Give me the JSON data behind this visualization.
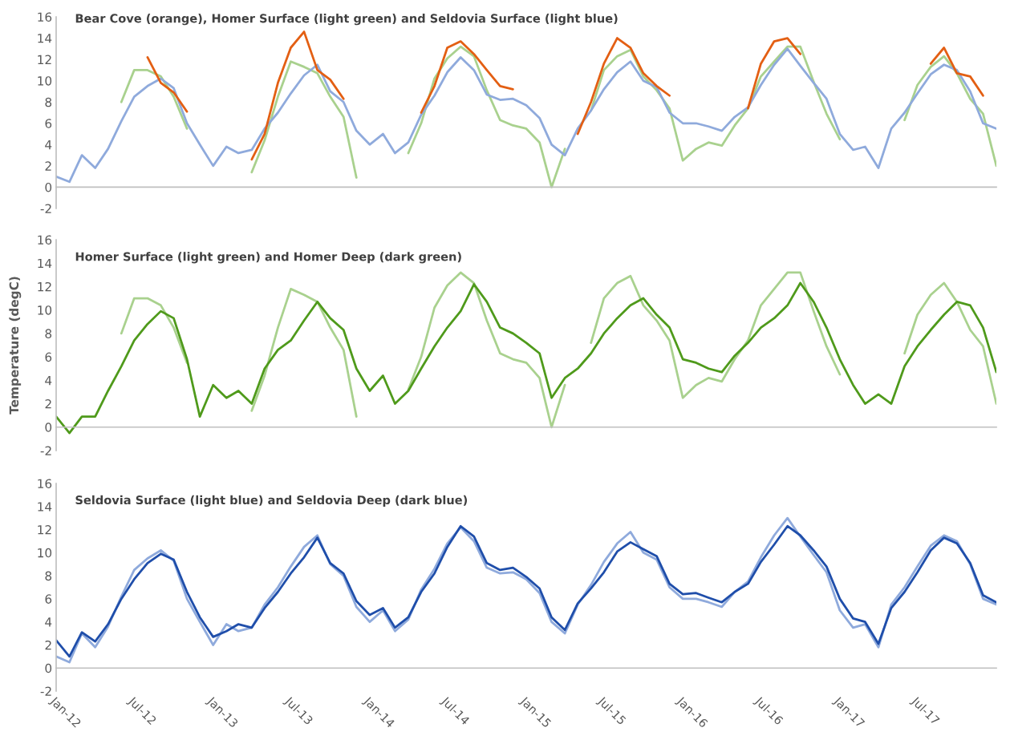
{
  "chart_data": [
    {
      "type": "line",
      "title": "Bear Cove (orange), Homer Surface (light green) and Seldovia Surface (light blue)",
      "x": [
        "2012-01",
        "2012-02",
        "2012-03",
        "2012-04",
        "2012-05",
        "2012-06",
        "2012-07",
        "2012-08",
        "2012-09",
        "2012-10",
        "2012-11",
        "2012-12",
        "2013-01",
        "2013-02",
        "2013-03",
        "2013-04",
        "2013-05",
        "2013-06",
        "2013-07",
        "2013-08",
        "2013-09",
        "2013-10",
        "2013-11",
        "2013-12",
        "2014-01",
        "2014-02",
        "2014-03",
        "2014-04",
        "2014-05",
        "2014-06",
        "2014-07",
        "2014-08",
        "2014-09",
        "2014-10",
        "2014-11",
        "2014-12",
        "2015-01",
        "2015-02",
        "2015-03",
        "2015-04",
        "2015-05",
        "2015-06",
        "2015-07",
        "2015-08",
        "2015-09",
        "2015-10",
        "2015-11",
        "2015-12",
        "2016-01",
        "2016-02",
        "2016-03",
        "2016-04",
        "2016-05",
        "2016-06",
        "2016-07",
        "2016-08",
        "2016-09",
        "2016-10",
        "2016-11",
        "2016-12",
        "2017-01",
        "2017-02",
        "2017-03",
        "2017-04",
        "2017-05",
        "2017-06",
        "2017-07",
        "2017-08",
        "2017-09",
        "2017-10",
        "2017-11",
        "2017-12",
        "2018-01"
      ],
      "series": [
        {
          "color": "#a9d18e",
          "values": [
            null,
            null,
            null,
            null,
            null,
            8.0,
            11.0,
            11.0,
            10.4,
            8.5,
            5.5,
            null,
            null,
            null,
            null,
            1.4,
            4.4,
            8.5,
            11.8,
            11.3,
            10.7,
            8.5,
            6.6,
            0.9,
            null,
            null,
            null,
            3.2,
            6.0,
            10.2,
            12.1,
            13.2,
            12.3,
            9.1,
            6.3,
            5.8,
            5.5,
            4.2,
            0.0,
            3.6,
            null,
            7.2,
            11.0,
            12.3,
            12.9,
            10.4,
            9.1,
            7.4,
            2.5,
            3.6,
            4.2,
            3.9,
            5.8,
            7.4,
            10.4,
            11.8,
            13.2,
            13.2,
            9.9,
            6.9,
            4.5,
            null,
            null,
            null,
            null,
            6.3,
            9.6,
            11.3,
            12.3,
            10.7,
            8.3,
            6.9,
            2.0
          ]
        },
        {
          "color": "#8faadc",
          "values": [
            1.0,
            0.5,
            3.0,
            1.8,
            3.6,
            6.2,
            8.5,
            9.5,
            10.2,
            9.3,
            6.0,
            4.0,
            2.0,
            3.8,
            3.2,
            3.5,
            5.5,
            7.0,
            8.8,
            10.5,
            11.5,
            9.0,
            8.0,
            5.3,
            4.0,
            5.0,
            3.2,
            4.2,
            6.8,
            8.6,
            10.8,
            12.2,
            11.0,
            8.7,
            8.2,
            8.3,
            7.7,
            6.5,
            4.0,
            3.0,
            5.5,
            7.2,
            9.2,
            10.8,
            11.8,
            10.0,
            9.4,
            7.0,
            6.0,
            6.0,
            5.7,
            5.3,
            6.6,
            7.5,
            9.6,
            11.5,
            13.0,
            11.4,
            9.8,
            8.3,
            5.0,
            3.5,
            3.8,
            1.8,
            5.5,
            7.0,
            8.8,
            10.6,
            11.5,
            11.0,
            9.0,
            6.0,
            5.5
          ]
        },
        {
          "color": "#e35f13",
          "values": [
            null,
            null,
            null,
            null,
            null,
            null,
            null,
            12.2,
            9.8,
            8.9,
            7.1,
            null,
            null,
            null,
            null,
            2.6,
            5.0,
            9.8,
            13.1,
            14.6,
            11.0,
            10.1,
            8.3,
            null,
            null,
            null,
            null,
            null,
            7.0,
            9.5,
            13.1,
            13.7,
            12.5,
            11.0,
            9.5,
            9.2,
            null,
            null,
            null,
            null,
            5.0,
            8.0,
            11.6,
            14.0,
            13.1,
            10.7,
            9.5,
            8.6,
            null,
            null,
            null,
            null,
            null,
            7.4,
            11.6,
            13.7,
            14.0,
            12.5,
            null,
            null,
            null,
            null,
            null,
            null,
            null,
            null,
            null,
            11.6,
            13.1,
            10.7,
            10.4,
            8.6,
            null
          ]
        }
      ],
      "xlim": [
        "2012-01",
        "2018-01"
      ],
      "xticks": [
        {
          "value": "2012-07",
          "label": null
        },
        {
          "value": "2013-01",
          "label": null
        },
        {
          "value": "2013-07",
          "label": null
        },
        {
          "value": "2014-01",
          "label": null
        },
        {
          "value": "2014-07",
          "label": null
        },
        {
          "value": "2015-01",
          "label": null
        },
        {
          "value": "2015-07",
          "label": null
        },
        {
          "value": "2016-01",
          "label": null
        },
        {
          "value": "2016-07",
          "label": null
        },
        {
          "value": "2017-01",
          "label": null
        },
        {
          "value": "2017-07",
          "label": null
        }
      ],
      "ylim": [
        -2,
        16
      ],
      "yticks": [
        -2,
        0,
        2,
        4,
        6,
        8,
        10,
        12,
        14,
        16
      ],
      "tick_labels": "y"
    },
    {
      "type": "line",
      "title": "Homer Surface (light green) and Homer Deep (dark green)",
      "ylabel": "Temperature (degC)",
      "x": [
        "2012-01",
        "2012-02",
        "2012-03",
        "2012-04",
        "2012-05",
        "2012-06",
        "2012-07",
        "2012-08",
        "2012-09",
        "2012-10",
        "2012-11",
        "2012-12",
        "2013-01",
        "2013-02",
        "2013-03",
        "2013-04",
        "2013-05",
        "2013-06",
        "2013-07",
        "2013-08",
        "2013-09",
        "2013-10",
        "2013-11",
        "2013-12",
        "2014-01",
        "2014-02",
        "2014-03",
        "2014-04",
        "2014-05",
        "2014-06",
        "2014-07",
        "2014-08",
        "2014-09",
        "2014-10",
        "2014-11",
        "2014-12",
        "2015-01",
        "2015-02",
        "2015-03",
        "2015-04",
        "2015-05",
        "2015-06",
        "2015-07",
        "2015-08",
        "2015-09",
        "2015-10",
        "2015-11",
        "2015-12",
        "2016-01",
        "2016-02",
        "2016-03",
        "2016-04",
        "2016-05",
        "2016-06",
        "2016-07",
        "2016-08",
        "2016-09",
        "2016-10",
        "2016-11",
        "2016-12",
        "2017-01",
        "2017-02",
        "2017-03",
        "2017-04",
        "2017-05",
        "2017-06",
        "2017-07",
        "2017-08",
        "2017-09",
        "2017-10",
        "2017-11",
        "2017-12",
        "2018-01"
      ],
      "series": [
        {
          "color": "#a9d18e",
          "values": [
            null,
            null,
            null,
            null,
            null,
            8.0,
            11.0,
            11.0,
            10.4,
            8.5,
            5.5,
            null,
            null,
            null,
            null,
            1.4,
            4.4,
            8.5,
            11.8,
            11.3,
            10.7,
            8.5,
            6.6,
            0.9,
            null,
            null,
            null,
            3.2,
            6.0,
            10.2,
            12.1,
            13.2,
            12.3,
            9.1,
            6.3,
            5.8,
            5.5,
            4.2,
            0.0,
            3.6,
            null,
            7.2,
            11.0,
            12.3,
            12.9,
            10.4,
            9.1,
            7.4,
            2.5,
            3.6,
            4.2,
            3.9,
            5.8,
            7.4,
            10.4,
            11.8,
            13.2,
            13.2,
            9.9,
            6.9,
            4.5,
            null,
            null,
            null,
            null,
            6.3,
            9.6,
            11.3,
            12.3,
            10.7,
            8.3,
            6.9,
            2.0
          ]
        },
        {
          "color": "#4f9a1b",
          "values": [
            0.9,
            -0.5,
            0.9,
            0.9,
            3.1,
            5.2,
            7.4,
            8.8,
            9.9,
            9.3,
            5.8,
            0.9,
            3.6,
            2.5,
            3.1,
            2.0,
            5.0,
            6.6,
            7.4,
            9.1,
            10.7,
            9.3,
            8.3,
            5.0,
            3.1,
            4.4,
            2.0,
            3.1,
            5.0,
            6.9,
            8.5,
            9.9,
            12.2,
            10.7,
            8.5,
            8.0,
            7.2,
            6.3,
            2.5,
            4.2,
            5.0,
            6.3,
            8.0,
            9.3,
            10.4,
            11.0,
            9.6,
            8.5,
            5.8,
            5.5,
            5.0,
            4.7,
            6.1,
            7.2,
            8.5,
            9.3,
            10.4,
            12.3,
            10.7,
            8.5,
            5.8,
            3.6,
            2.0,
            2.8,
            2.0,
            5.2,
            6.9,
            8.3,
            9.6,
            10.7,
            10.4,
            8.5,
            4.7
          ]
        }
      ],
      "xlim": [
        "2012-01",
        "2018-01"
      ],
      "xticks": [
        {
          "value": "2012-07",
          "label": null
        },
        {
          "value": "2013-01",
          "label": null
        },
        {
          "value": "2013-07",
          "label": null
        },
        {
          "value": "2014-01",
          "label": null
        },
        {
          "value": "2014-07",
          "label": null
        },
        {
          "value": "2015-01",
          "label": null
        },
        {
          "value": "2015-07",
          "label": null
        },
        {
          "value": "2016-01",
          "label": null
        },
        {
          "value": "2016-07",
          "label": null
        },
        {
          "value": "2017-01",
          "label": null
        },
        {
          "value": "2017-07",
          "label": null
        }
      ],
      "ylim": [
        -2,
        16
      ],
      "yticks": [
        -2,
        0,
        2,
        4,
        6,
        8,
        10,
        12,
        14,
        16
      ],
      "tick_labels": "y"
    },
    {
      "type": "line",
      "title": "Seldovia Surface (light blue) and Seldovia Deep (dark blue)",
      "x": [
        "2012-01",
        "2012-02",
        "2012-03",
        "2012-04",
        "2012-05",
        "2012-06",
        "2012-07",
        "2012-08",
        "2012-09",
        "2012-10",
        "2012-11",
        "2012-12",
        "2013-01",
        "2013-02",
        "2013-03",
        "2013-04",
        "2013-05",
        "2013-06",
        "2013-07",
        "2013-08",
        "2013-09",
        "2013-10",
        "2013-11",
        "2013-12",
        "2014-01",
        "2014-02",
        "2014-03",
        "2014-04",
        "2014-05",
        "2014-06",
        "2014-07",
        "2014-08",
        "2014-09",
        "2014-10",
        "2014-11",
        "2014-12",
        "2015-01",
        "2015-02",
        "2015-03",
        "2015-04",
        "2015-05",
        "2015-06",
        "2015-07",
        "2015-08",
        "2015-09",
        "2015-10",
        "2015-11",
        "2015-12",
        "2016-01",
        "2016-02",
        "2016-03",
        "2016-04",
        "2016-05",
        "2016-06",
        "2016-07",
        "2016-08",
        "2016-09",
        "2016-10",
        "2016-11",
        "2016-12",
        "2017-01",
        "2017-02",
        "2017-03",
        "2017-04",
        "2017-05",
        "2017-06",
        "2017-07",
        "2017-08",
        "2017-09",
        "2017-10",
        "2017-11",
        "2017-12",
        "2018-01"
      ],
      "series": [
        {
          "color": "#8faadc",
          "values": [
            1.0,
            0.5,
            3.0,
            1.8,
            3.6,
            6.2,
            8.5,
            9.5,
            10.2,
            9.3,
            6.0,
            4.0,
            2.0,
            3.8,
            3.2,
            3.5,
            5.5,
            7.0,
            8.8,
            10.5,
            11.5,
            9.0,
            8.0,
            5.3,
            4.0,
            5.0,
            3.2,
            4.2,
            6.8,
            8.6,
            10.8,
            12.2,
            11.0,
            8.7,
            8.2,
            8.3,
            7.7,
            6.5,
            4.0,
            3.0,
            5.5,
            7.2,
            9.2,
            10.8,
            11.8,
            10.0,
            9.4,
            7.0,
            6.0,
            6.0,
            5.7,
            5.3,
            6.6,
            7.5,
            9.6,
            11.5,
            13.0,
            11.4,
            9.8,
            8.3,
            5.0,
            3.5,
            3.8,
            1.8,
            5.5,
            7.0,
            8.8,
            10.6,
            11.5,
            11.0,
            9.0,
            6.0,
            5.5
          ]
        },
        {
          "color": "#1f4eaa",
          "values": [
            2.4,
            1.0,
            3.1,
            2.3,
            3.8,
            6.0,
            7.7,
            9.1,
            9.9,
            9.4,
            6.6,
            4.4,
            2.7,
            3.2,
            3.8,
            3.5,
            5.2,
            6.6,
            8.2,
            9.6,
            11.3,
            9.1,
            8.2,
            5.8,
            4.6,
            5.2,
            3.5,
            4.4,
            6.6,
            8.2,
            10.5,
            12.3,
            11.4,
            9.1,
            8.5,
            8.7,
            7.9,
            6.9,
            4.4,
            3.3,
            5.6,
            6.9,
            8.3,
            10.1,
            10.9,
            10.3,
            9.7,
            7.3,
            6.4,
            6.5,
            6.1,
            5.7,
            6.6,
            7.3,
            9.2,
            10.7,
            12.3,
            11.5,
            10.2,
            8.8,
            6.0,
            4.3,
            4.0,
            2.1,
            5.2,
            6.6,
            8.3,
            10.2,
            11.3,
            10.8,
            9.1,
            6.3,
            5.7
          ]
        }
      ],
      "xlim": [
        "2012-01",
        "2018-01"
      ],
      "xticks": [
        {
          "value": "2012-01",
          "label": "Jan-12"
        },
        {
          "value": "2012-07",
          "label": "Jul-12"
        },
        {
          "value": "2013-01",
          "label": "Jan-13"
        },
        {
          "value": "2013-07",
          "label": "Jul-13"
        },
        {
          "value": "2014-01",
          "label": "Jan-14"
        },
        {
          "value": "2014-07",
          "label": "Jul-14"
        },
        {
          "value": "2015-01",
          "label": "Jan-15"
        },
        {
          "value": "2015-07",
          "label": "Jul-15"
        },
        {
          "value": "2016-01",
          "label": "Jan-16"
        },
        {
          "value": "2016-07",
          "label": "Jul-16"
        },
        {
          "value": "2017-01",
          "label": "Jan-17"
        },
        {
          "value": "2017-07",
          "label": "Jul-17"
        }
      ],
      "ylim": [
        -2,
        16
      ],
      "yticks": [
        -2,
        0,
        2,
        4,
        6,
        8,
        10,
        12,
        14,
        16
      ]
    }
  ]
}
